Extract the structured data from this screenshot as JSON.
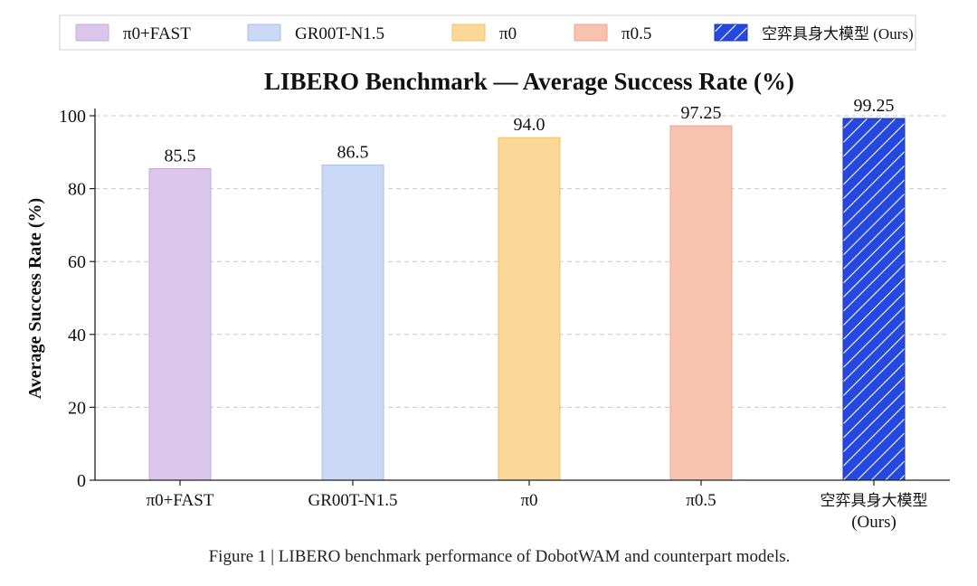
{
  "chart_data": {
    "type": "bar",
    "title": "LIBERO Benchmark — Average Success Rate (%)",
    "ylabel": "Average Success Rate (%)",
    "xlabel": "",
    "ylim": [
      0,
      100
    ],
    "yticks": [
      0,
      20,
      40,
      60,
      80,
      100
    ],
    "grid": "horizontal-dashed",
    "legend_placement": "top",
    "categories": [
      {
        "label": "π0+FAST",
        "sublabel": "",
        "legend": "π0+FAST",
        "value": 85.5,
        "value_label": "85.5",
        "color": "#D9C6EA",
        "border": "#C4ABDD",
        "hatch": false
      },
      {
        "label": "GR00T-N1.5",
        "sublabel": "",
        "legend": "GR00T-N1.5",
        "value": 86.5,
        "value_label": "86.5",
        "color": "#C9D8F4",
        "border": "#A9BFEA",
        "hatch": false
      },
      {
        "label": "π0",
        "sublabel": "",
        "legend": "π0",
        "value": 94.0,
        "value_label": "94.0",
        "color": "#FBD898",
        "border": "#F1C068",
        "hatch": false
      },
      {
        "label": "π0.5",
        "sublabel": "",
        "legend": "π0.5",
        "value": 97.25,
        "value_label": "97.25",
        "color": "#F7C3AE",
        "border": "#ECA68C",
        "hatch": false
      },
      {
        "label": "空弈具身大模型",
        "sublabel": "(Ours)",
        "legend": "空弈具身大模型 (Ours)",
        "value": 99.25,
        "value_label": "99.25",
        "color": "#2448E0",
        "border": "#1A34B0",
        "hatch": true
      }
    ]
  },
  "caption": "Figure 1 | LIBERO benchmark performance of DobotWAM and counterpart models."
}
